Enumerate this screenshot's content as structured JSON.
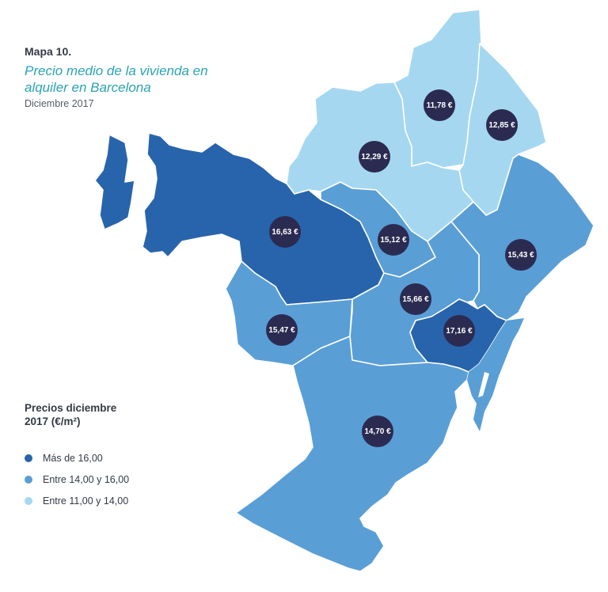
{
  "header": {
    "map_number": "Mapa 10.",
    "title": "Precio medio de la vivienda en alquiler en Barcelona",
    "date": "Diciembre 2017"
  },
  "legend": {
    "title": "Precios diciembre 2017 (€/m²)",
    "items": [
      {
        "label": "Más de 16,00",
        "color": "#2864ab"
      },
      {
        "label": "Entre 14,00 y 16,00",
        "color": "#5a9ed6"
      },
      {
        "label": "Entre 11,00 y 14,00",
        "color": "#a5d8f0"
      }
    ]
  },
  "districts": [
    {
      "price": "11,78 €",
      "category": "light"
    },
    {
      "price": "12,85 €",
      "category": "light"
    },
    {
      "price": "12,29 €",
      "category": "light"
    },
    {
      "price": "16,63 €",
      "category": "dark"
    },
    {
      "price": "15,12 €",
      "category": "medium"
    },
    {
      "price": "15,43 €",
      "category": "medium"
    },
    {
      "price": "15,66 €",
      "category": "medium"
    },
    {
      "price": "15,47 €",
      "category": "medium"
    },
    {
      "price": "17,16 €",
      "category": "dark"
    },
    {
      "price": "14,70 €",
      "category": "medium"
    }
  ],
  "colors": {
    "dark": "#2864ab",
    "medium": "#5a9ed6",
    "light": "#a5d8f0",
    "badge": "#2b2b52",
    "accent": "#2aa3b3"
  }
}
